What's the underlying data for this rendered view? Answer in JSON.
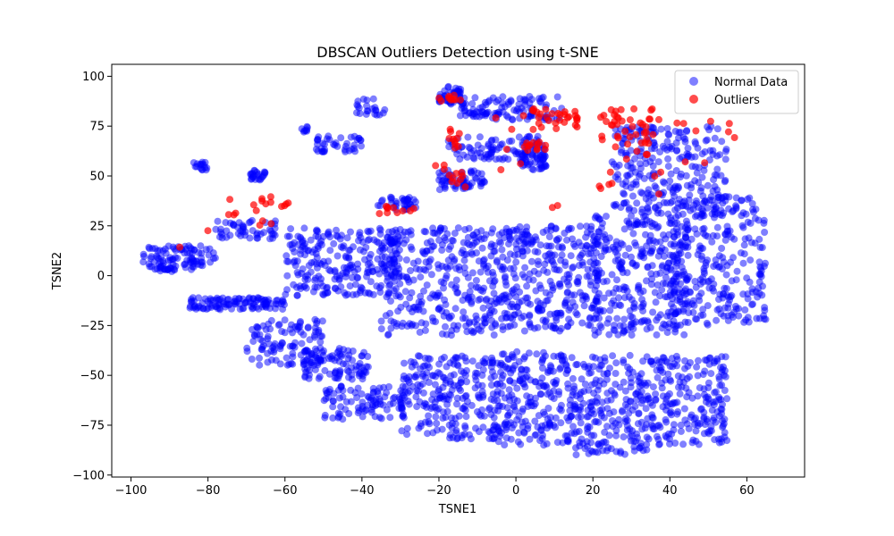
{
  "chart_data": {
    "type": "scatter",
    "title": "DBSCAN Outliers Detection using t-SNE",
    "xlabel": "TSNE1",
    "ylabel": "TSNE2",
    "xlim": [
      -105,
      75
    ],
    "ylim": [
      -101,
      106
    ],
    "xticks": [
      -100,
      -80,
      -60,
      -40,
      -20,
      0,
      20,
      40,
      60
    ],
    "yticks": [
      -100,
      -75,
      -50,
      -25,
      0,
      25,
      50,
      75,
      100
    ],
    "grid": false,
    "legend_position": "top-right",
    "series": [
      {
        "name": "Normal Data",
        "color": "#0000ff",
        "clusters": [
          {
            "x": [
              -97,
              -78
            ],
            "y": [
              3,
              15
            ],
            "n": 90
          },
          {
            "x": [
              -94,
              -88
            ],
            "y": [
              2,
              5
            ],
            "n": 18
          },
          {
            "x": [
              -85,
              -60
            ],
            "y": [
              -17,
              -11
            ],
            "n": 110
          },
          {
            "x": [
              -70,
              -50
            ],
            "y": [
              -45,
              -22
            ],
            "n": 110
          },
          {
            "x": [
              -55,
              -38
            ],
            "y": [
              -52,
              -36
            ],
            "n": 90
          },
          {
            "x": [
              -50,
              -28
            ],
            "y": [
              -72,
              -55
            ],
            "n": 100
          },
          {
            "x": [
              -78,
              -62
            ],
            "y": [
              18,
              28
            ],
            "n": 50
          },
          {
            "x": [
              -69,
              -65
            ],
            "y": [
              48,
              53
            ],
            "n": 24
          },
          {
            "x": [
              -84,
              -80
            ],
            "y": [
              53,
              57
            ],
            "n": 16
          },
          {
            "x": [
              -56,
              -54
            ],
            "y": [
              72,
              75
            ],
            "n": 8
          },
          {
            "x": [
              -52,
              -40
            ],
            "y": [
              62,
              70
            ],
            "n": 40
          },
          {
            "x": [
              -42,
              -34
            ],
            "y": [
              80,
              89
            ],
            "n": 22
          },
          {
            "x": [
              -36,
              -26
            ],
            "y": [
              33,
              40
            ],
            "n": 36
          },
          {
            "x": [
              -60,
              -30
            ],
            "y": [
              -10,
              24
            ],
            "n": 240
          },
          {
            "x": [
              -35,
              -5
            ],
            "y": [
              -30,
              24
            ],
            "n": 320
          },
          {
            "x": [
              -30,
              -5
            ],
            "y": [
              -82,
              -40
            ],
            "n": 230
          },
          {
            "x": [
              -5,
              22
            ],
            "y": [
              -28,
              25
            ],
            "n": 320
          },
          {
            "x": [
              -5,
              15
            ],
            "y": [
              -85,
              -38
            ],
            "n": 220
          },
          {
            "x": [
              15,
              35
            ],
            "y": [
              -90,
              -40
            ],
            "n": 220
          },
          {
            "x": [
              20,
              45
            ],
            "y": [
              -30,
              30
            ],
            "n": 300
          },
          {
            "x": [
              40,
              65
            ],
            "y": [
              -25,
              40
            ],
            "n": 280
          },
          {
            "x": [
              35,
              55
            ],
            "y": [
              -85,
              -40
            ],
            "n": 200
          },
          {
            "x": [
              25,
              55
            ],
            "y": [
              30,
              75
            ],
            "n": 260
          },
          {
            "x": [
              -20,
              -14
            ],
            "y": [
              86,
              96
            ],
            "n": 40
          },
          {
            "x": [
              -15,
              12
            ],
            "y": [
              78,
              90
            ],
            "n": 110
          },
          {
            "x": [
              -18,
              8
            ],
            "y": [
              58,
              70
            ],
            "n": 100
          },
          {
            "x": [
              -20,
              -8
            ],
            "y": [
              43,
              53
            ],
            "n": 60
          },
          {
            "x": [
              0,
              8
            ],
            "y": [
              53,
              62
            ],
            "n": 40
          }
        ]
      },
      {
        "name": "Outliers",
        "color": "#ff0000",
        "clusters": [
          {
            "x": [
              -88,
              -87
            ],
            "y": [
              13,
              15
            ],
            "n": 1
          },
          {
            "x": [
              -81,
              -79
            ],
            "y": [
              21,
              23
            ],
            "n": 1
          },
          {
            "x": [
              -76,
              -72
            ],
            "y": [
              26,
              39
            ],
            "n": 4
          },
          {
            "x": [
              -69,
              -62
            ],
            "y": [
              25,
              42
            ],
            "n": 10
          },
          {
            "x": [
              -61,
              -59
            ],
            "y": [
              34,
              37
            ],
            "n": 4
          },
          {
            "x": [
              -38,
              -26
            ],
            "y": [
              31,
              35
            ],
            "n": 10
          },
          {
            "x": [
              -20,
              -14
            ],
            "y": [
              86,
              91
            ],
            "n": 10
          },
          {
            "x": [
              -18,
              -14
            ],
            "y": [
              62,
              76
            ],
            "n": 10
          },
          {
            "x": [
              -21,
              -11
            ],
            "y": [
              44,
              56
            ],
            "n": 12
          },
          {
            "x": [
              -10,
              2
            ],
            "y": [
              30,
              81
            ],
            "n": 6
          },
          {
            "x": [
              4,
              16
            ],
            "y": [
              73,
              84
            ],
            "n": 30
          },
          {
            "x": [
              2,
              8
            ],
            "y": [
              62,
              68
            ],
            "n": 12
          },
          {
            "x": [
              9,
              11
            ],
            "y": [
              34,
              36
            ],
            "n": 2
          },
          {
            "x": [
              22,
              38
            ],
            "y": [
              58,
              84
            ],
            "n": 45
          },
          {
            "x": [
              21,
              25
            ],
            "y": [
              43,
              54
            ],
            "n": 5
          },
          {
            "x": [
              36,
              58
            ],
            "y": [
              38,
              78
            ],
            "n": 12
          }
        ]
      }
    ]
  }
}
